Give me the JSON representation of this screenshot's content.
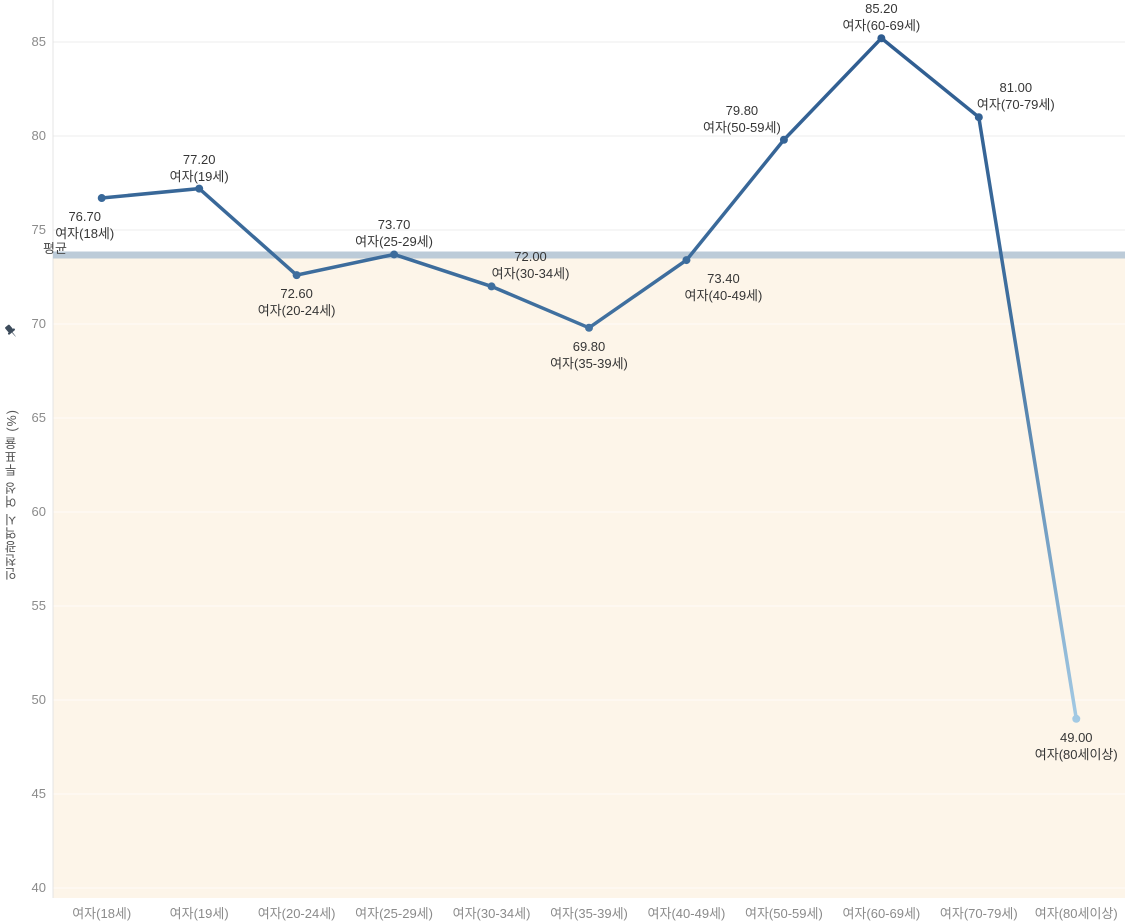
{
  "chart_data": {
    "type": "line",
    "title": "",
    "xlabel": "",
    "ylabel": "인천광역시 여성 투표율 (%)",
    "ylim": [
      40,
      85
    ],
    "yticks": [
      85,
      80,
      75,
      70,
      65,
      60,
      55,
      50,
      45,
      40
    ],
    "grid": "horizontal",
    "legend_position": "none",
    "categories": [
      "여자(18세)",
      "여자(19세)",
      "여자(20-24세)",
      "여자(25-29세)",
      "여자(30-34세)",
      "여자(35-39세)",
      "여자(40-49세)",
      "여자(50-59세)",
      "여자(60-69세)",
      "여자(70-79세)",
      "여자(80세이상)"
    ],
    "series": [
      {
        "name": "인천광역시 여성 투표율",
        "values": [
          76.7,
          77.2,
          72.6,
          73.7,
          72.0,
          69.8,
          73.4,
          79.8,
          85.2,
          81.0,
          49.0
        ]
      }
    ],
    "point_labels": [
      {
        "value_text": "76.70",
        "category_text": "여자(18세)",
        "position": "below",
        "dx": -17
      },
      {
        "value_text": "77.20",
        "category_text": "여자(19세)",
        "position": "above",
        "dx": 0
      },
      {
        "value_text": "72.60",
        "category_text": "여자(20-24세)",
        "position": "below",
        "dx": 0
      },
      {
        "value_text": "73.70",
        "category_text": "여자(25-29세)",
        "position": "above",
        "dx": 0
      },
      {
        "value_text": "72.00",
        "category_text": "여자(30-34세)",
        "position": "above",
        "dx": 39
      },
      {
        "value_text": "69.80",
        "category_text": "여자(35-39세)",
        "position": "below",
        "dx": 0
      },
      {
        "value_text": "73.40",
        "category_text": "여자(40-49세)",
        "position": "below",
        "dx": 37
      },
      {
        "value_text": "79.80",
        "category_text": "여자(50-59세)",
        "position": "above",
        "dx": -42
      },
      {
        "value_text": "85.20",
        "category_text": "여자(60-69세)",
        "position": "above",
        "dx": 0
      },
      {
        "value_text": "81.00",
        "category_text": "여자(70-79세)",
        "position": "above",
        "dx": 37
      },
      {
        "value_text": "49.00",
        "category_text": "여자(80세이상)",
        "position": "below",
        "dx": 0
      }
    ],
    "average_line": {
      "label": "평균",
      "value": 73.67
    },
    "colors": {
      "line_dark": "#2e5c90",
      "line_mid": "#40709f",
      "line_light": "#a9cfe8",
      "average_band": "#bccbd8",
      "below_average_fill": "#fdf5e9",
      "gridline": "#ededed",
      "gridline_on_fill": "rgba(255,255,255,0.7)",
      "axis_line": "#e4e4e4",
      "tick_label": "#8b8b8b",
      "data_label": "#363636",
      "axis_title": "#555555",
      "pin": "#3d4c5c"
    }
  }
}
